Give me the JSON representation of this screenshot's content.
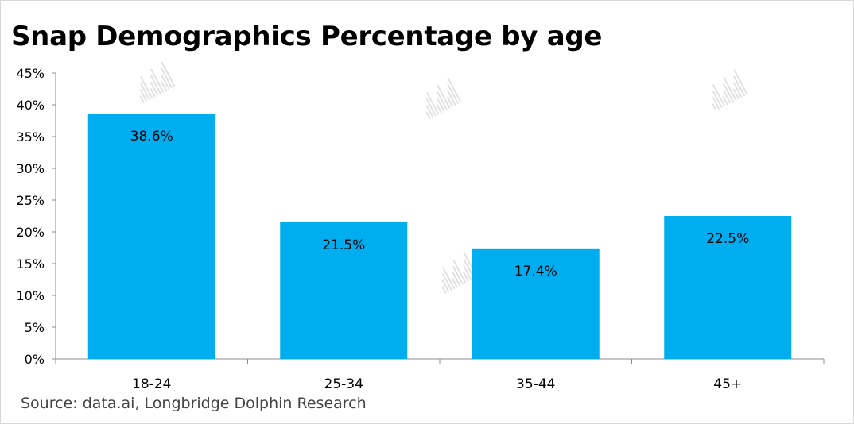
{
  "title": "Snap Demographics Percentage by age",
  "source": "Source: data.ai, Longbridge Dolphin Research",
  "colors": {
    "bar": "#00aeef",
    "axis": "#8c8c8c",
    "text": "#000000"
  },
  "chart_data": {
    "type": "bar",
    "title": "Snap Demographics Percentage by age",
    "categories": [
      "18-24",
      "25-34",
      "35-44",
      "45+"
    ],
    "values": [
      38.6,
      21.5,
      17.4,
      22.5
    ],
    "data_labels": [
      "38.6%",
      "21.5%",
      "17.4%",
      "22.5%"
    ],
    "y_ticks": [
      "0%",
      "5%",
      "10%",
      "15%",
      "20%",
      "25%",
      "30%",
      "35%",
      "40%",
      "45%"
    ],
    "ylim": [
      0,
      45
    ],
    "xlabel": "",
    "ylabel": "",
    "grid": false,
    "legend": "none"
  }
}
